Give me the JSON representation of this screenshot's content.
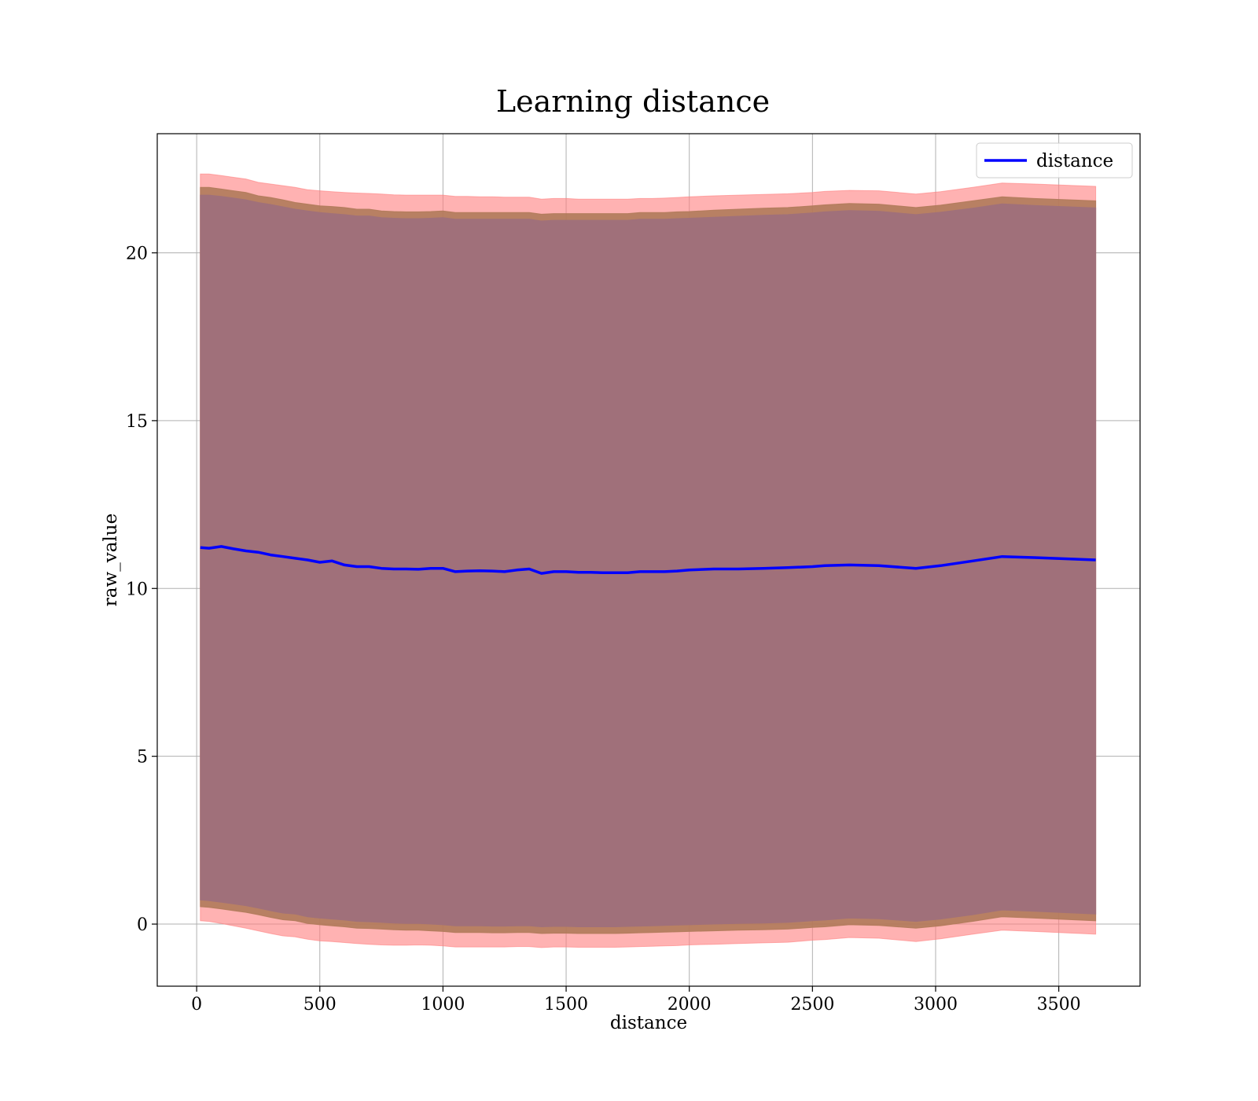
{
  "chart_data": {
    "type": "line",
    "title": "Learning distance",
    "xlabel": "distance",
    "ylabel": "raw_value",
    "xlim": [
      -160,
      3830
    ],
    "ylim": [
      -1.85,
      23.55
    ],
    "xticks": [
      0,
      500,
      1000,
      1500,
      2000,
      2500,
      3000,
      3500
    ],
    "yticks": [
      0,
      5,
      10,
      15,
      20
    ],
    "grid": true,
    "legend": {
      "position": "top-right",
      "entries": [
        "distance"
      ]
    },
    "colors": {
      "line": "#0000ff",
      "outer_band": "#ff7f7f",
      "middle_band": "#b07a5a",
      "inner_band": "#a0707a",
      "grid": "#b0b0b0"
    },
    "series": [
      {
        "name": "distance",
        "x": [
          15,
          50,
          100,
          150,
          200,
          250,
          300,
          350,
          400,
          450,
          500,
          550,
          600,
          650,
          700,
          750,
          800,
          850,
          900,
          950,
          1000,
          1050,
          1100,
          1150,
          1200,
          1250,
          1300,
          1350,
          1400,
          1450,
          1500,
          1550,
          1600,
          1650,
          1700,
          1750,
          1800,
          1850,
          1900,
          1950,
          2000,
          2100,
          2200,
          2300,
          2400,
          2500,
          2550,
          2650,
          2770,
          2920,
          3020,
          3150,
          3270,
          3400,
          3650
        ],
        "y": [
          11.22,
          11.2,
          11.25,
          11.18,
          11.12,
          11.08,
          11.0,
          10.95,
          10.9,
          10.85,
          10.78,
          10.82,
          10.7,
          10.65,
          10.65,
          10.6,
          10.58,
          10.58,
          10.57,
          10.6,
          10.6,
          10.5,
          10.52,
          10.53,
          10.52,
          10.5,
          10.55,
          10.58,
          10.45,
          10.5,
          10.5,
          10.48,
          10.48,
          10.47,
          10.47,
          10.47,
          10.5,
          10.5,
          10.5,
          10.52,
          10.55,
          10.58,
          10.58,
          10.6,
          10.62,
          10.65,
          10.68,
          10.7,
          10.68,
          10.6,
          10.68,
          10.82,
          10.95,
          10.92,
          10.85
        ]
      }
    ],
    "bands": {
      "outer_upper": [
        22.35,
        22.35,
        22.3,
        22.25,
        22.2,
        22.1,
        22.05,
        22.0,
        21.95,
        21.88,
        21.85,
        21.82,
        21.8,
        21.78,
        21.77,
        21.75,
        21.73,
        21.72,
        21.72,
        21.72,
        21.72,
        21.68,
        21.68,
        21.67,
        21.67,
        21.66,
        21.66,
        21.66,
        21.6,
        21.62,
        21.62,
        21.6,
        21.6,
        21.6,
        21.6,
        21.6,
        21.62,
        21.62,
        21.63,
        21.65,
        21.67,
        21.7,
        21.72,
        21.74,
        21.76,
        21.8,
        21.83,
        21.86,
        21.85,
        21.75,
        21.82,
        21.95,
        22.08,
        22.05,
        21.98
      ],
      "middle_upper": [
        21.95,
        21.95,
        21.9,
        21.85,
        21.8,
        21.7,
        21.65,
        21.58,
        21.5,
        21.45,
        21.4,
        21.38,
        21.35,
        21.3,
        21.3,
        21.25,
        21.23,
        21.22,
        21.22,
        21.23,
        21.25,
        21.2,
        21.2,
        21.2,
        21.2,
        21.2,
        21.2,
        21.2,
        21.15,
        21.17,
        21.17,
        21.17,
        21.17,
        21.17,
        21.17,
        21.17,
        21.2,
        21.2,
        21.2,
        21.22,
        21.23,
        21.27,
        21.3,
        21.33,
        21.35,
        21.4,
        21.43,
        21.47,
        21.45,
        21.35,
        21.42,
        21.55,
        21.67,
        21.62,
        21.55
      ],
      "inner_upper": [
        21.72,
        21.72,
        21.68,
        21.63,
        21.58,
        21.5,
        21.44,
        21.37,
        21.3,
        21.25,
        21.2,
        21.17,
        21.14,
        21.1,
        21.1,
        21.05,
        21.03,
        21.02,
        21.02,
        21.03,
        21.05,
        21.0,
        21.0,
        21.0,
        21.0,
        21.0,
        21.0,
        21.0,
        20.95,
        20.97,
        20.97,
        20.97,
        20.97,
        20.97,
        20.97,
        20.97,
        21.0,
        21.0,
        21.0,
        21.02,
        21.03,
        21.06,
        21.09,
        21.12,
        21.14,
        21.19,
        21.22,
        21.26,
        21.24,
        21.14,
        21.21,
        21.33,
        21.46,
        21.41,
        21.34
      ],
      "inner_lower": [
        0.72,
        0.7,
        0.65,
        0.6,
        0.55,
        0.48,
        0.4,
        0.33,
        0.3,
        0.22,
        0.18,
        0.15,
        0.12,
        0.08,
        0.07,
        0.05,
        0.03,
        0.02,
        0.02,
        0.0,
        -0.02,
        -0.05,
        -0.05,
        -0.05,
        -0.06,
        -0.06,
        -0.05,
        -0.05,
        -0.08,
        -0.07,
        -0.07,
        -0.08,
        -0.08,
        -0.08,
        -0.08,
        -0.07,
        -0.06,
        -0.05,
        -0.04,
        -0.03,
        -0.02,
        0.0,
        0.02,
        0.03,
        0.05,
        0.1,
        0.12,
        0.18,
        0.16,
        0.08,
        0.15,
        0.28,
        0.42,
        0.38,
        0.3
      ],
      "middle_lower": [
        0.52,
        0.5,
        0.45,
        0.4,
        0.35,
        0.28,
        0.2,
        0.13,
        0.1,
        0.02,
        -0.02,
        -0.05,
        -0.08,
        -0.12,
        -0.13,
        -0.15,
        -0.17,
        -0.18,
        -0.18,
        -0.2,
        -0.22,
        -0.25,
        -0.25,
        -0.25,
        -0.26,
        -0.26,
        -0.25,
        -0.25,
        -0.28,
        -0.27,
        -0.27,
        -0.28,
        -0.28,
        -0.28,
        -0.28,
        -0.27,
        -0.26,
        -0.25,
        -0.24,
        -0.23,
        -0.22,
        -0.2,
        -0.18,
        -0.17,
        -0.15,
        -0.1,
        -0.08,
        -0.02,
        -0.04,
        -0.12,
        -0.05,
        0.08,
        0.22,
        0.18,
        0.1
      ],
      "outer_lower": [
        0.1,
        0.08,
        0.02,
        -0.05,
        -0.12,
        -0.2,
        -0.28,
        -0.35,
        -0.38,
        -0.45,
        -0.5,
        -0.52,
        -0.55,
        -0.58,
        -0.6,
        -0.62,
        -0.63,
        -0.63,
        -0.62,
        -0.63,
        -0.65,
        -0.68,
        -0.68,
        -0.68,
        -0.68,
        -0.68,
        -0.67,
        -0.67,
        -0.7,
        -0.68,
        -0.68,
        -0.69,
        -0.69,
        -0.69,
        -0.69,
        -0.68,
        -0.67,
        -0.66,
        -0.65,
        -0.64,
        -0.62,
        -0.6,
        -0.58,
        -0.56,
        -0.54,
        -0.48,
        -0.46,
        -0.4,
        -0.42,
        -0.52,
        -0.44,
        -0.3,
        -0.18,
        -0.22,
        -0.3
      ]
    }
  }
}
